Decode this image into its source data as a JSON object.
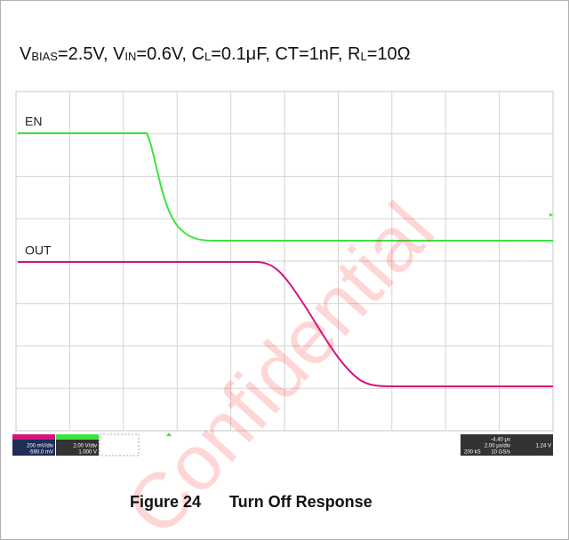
{
  "title_parts": [
    "V",
    "BIAS",
    "=2.5V, V",
    "IN",
    "=0.6V, C",
    "L",
    "=0.1μF, CT=1nF, R",
    "L",
    "=10Ω"
  ],
  "trace_labels": {
    "en": "EN",
    "out": "OUT"
  },
  "watermark": "Confidential",
  "readouts": {
    "ch1_scale": "200 mV/div",
    "ch1_offset": "-590.0 mV",
    "ch2_scale": "2.00 V/div",
    "ch2_offset": "1.000 V",
    "position": "-4.40 μs",
    "timebase": "2.00 μs/div",
    "samples": "200 kS",
    "rate": "10 GS/s",
    "trigger_level": "1.24 V"
  },
  "caption": {
    "number": "Figure 24",
    "text": "Turn Off Response"
  }
}
